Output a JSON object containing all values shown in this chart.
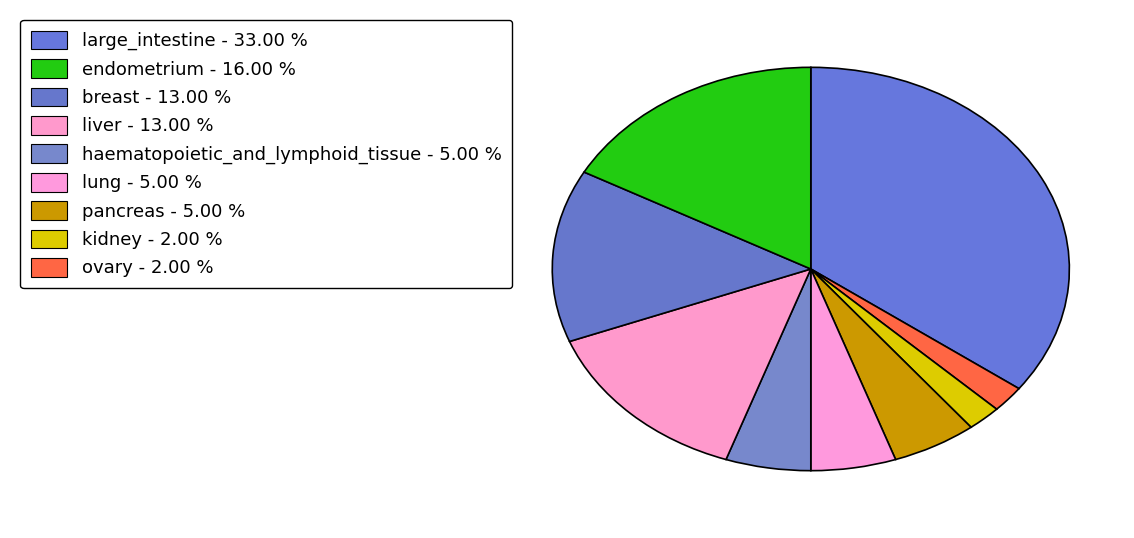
{
  "labels": [
    "large_intestine",
    "endometrium",
    "breast",
    "liver",
    "haematopoietic_and_lymphoid_tissue",
    "lung",
    "pancreas",
    "kidney",
    "ovary"
  ],
  "values": [
    33,
    16,
    13,
    13,
    5,
    5,
    5,
    2,
    2
  ],
  "colors": [
    "#6677DD",
    "#22CC11",
    "#6677CC",
    "#FF99CC",
    "#7788CC",
    "#FF99DD",
    "#CC9900",
    "#DDCC00",
    "#FF6644"
  ],
  "percentages": [
    33.0,
    16.0,
    13.0,
    13.0,
    5.0,
    5.0,
    5.0,
    2.0,
    2.0
  ],
  "background_color": "#ffffff",
  "legend_fontsize": 13,
  "figsize": [
    11.34,
    5.38
  ],
  "dpi": 100,
  "pie_order": [
    0,
    8,
    7,
    6,
    5,
    4,
    3,
    2,
    1
  ]
}
